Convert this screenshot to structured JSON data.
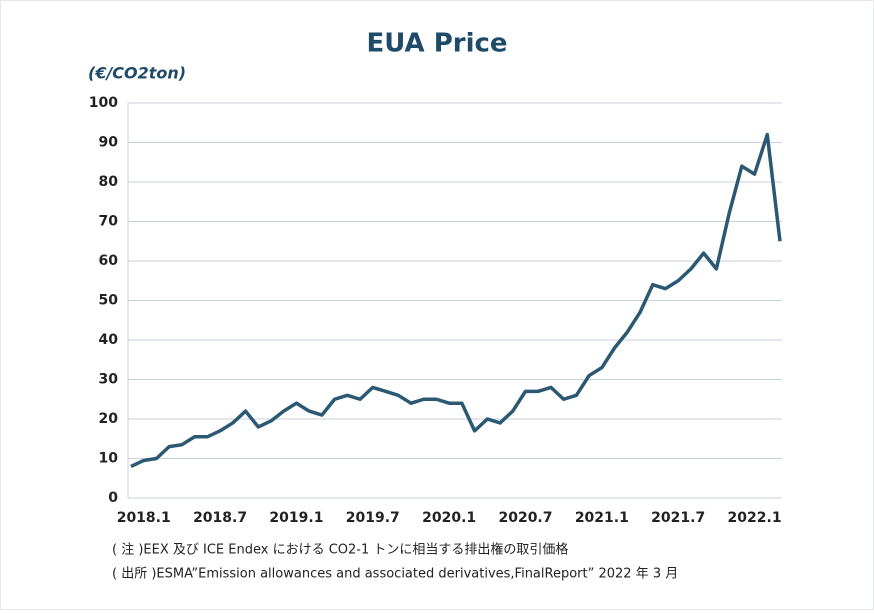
{
  "chart_data": {
    "type": "line",
    "title": "EUA Price",
    "y_label": "(€/CO2ton)",
    "x": [
      "2017-12",
      "2018-01",
      "2018-02",
      "2018-03",
      "2018-04",
      "2018-05",
      "2018-06",
      "2018-07",
      "2018-08",
      "2018-09",
      "2018-10",
      "2018-11",
      "2018-12",
      "2019-01",
      "2019-02",
      "2019-03",
      "2019-04",
      "2019-05",
      "2019-06",
      "2019-07",
      "2019-08",
      "2019-09",
      "2019-10",
      "2019-11",
      "2019-12",
      "2020-01",
      "2020-02",
      "2020-03",
      "2020-04",
      "2020-05",
      "2020-06",
      "2020-07",
      "2020-08",
      "2020-09",
      "2020-10",
      "2020-11",
      "2020-12",
      "2021-01",
      "2021-02",
      "2021-03",
      "2021-04",
      "2021-05",
      "2021-06",
      "2021-07",
      "2021-08",
      "2021-09",
      "2021-10",
      "2021-11",
      "2021-12",
      "2022-01",
      "2022-02",
      "2022-03"
    ],
    "series": [
      {
        "name": "EUA",
        "color": "#2b5872",
        "values": [
          8,
          9.5,
          10,
          13,
          13.5,
          15.5,
          15.5,
          17,
          19,
          22,
          18,
          19.5,
          22,
          24,
          22,
          21,
          25,
          26,
          25,
          28,
          27,
          26,
          24,
          25,
          25,
          24,
          24,
          17,
          20,
          19,
          22,
          27,
          27,
          28,
          25,
          26,
          31,
          33,
          38,
          42,
          47,
          54,
          53,
          55,
          58,
          62,
          58,
          72,
          84,
          82,
          92,
          65
        ]
      }
    ],
    "xticks": [
      {
        "value": "2018-01",
        "label": "2018.1"
      },
      {
        "value": "2018-07",
        "label": "2018.7"
      },
      {
        "value": "2019-01",
        "label": "2019.1"
      },
      {
        "value": "2019-07",
        "label": "2019.7"
      },
      {
        "value": "2020-01",
        "label": "2020.1"
      },
      {
        "value": "2020-07",
        "label": "2020.7"
      },
      {
        "value": "2021-01",
        "label": "2021.1"
      },
      {
        "value": "2021-07",
        "label": "2021.7"
      },
      {
        "value": "2022-01",
        "label": "2022.1"
      }
    ],
    "ylim": [
      0,
      100
    ],
    "yticks": [
      0,
      10,
      20,
      30,
      40,
      50,
      60,
      70,
      80,
      90,
      100
    ],
    "grid": true,
    "notes": [
      "( 注 )EEX 及び ICE Endex における CO2-1 トンに相当する排出権の取引価格",
      "( 出所 )ESMA”Emission allowances and associated derivatives,FinalReport” 2022 年 3 月"
    ]
  }
}
